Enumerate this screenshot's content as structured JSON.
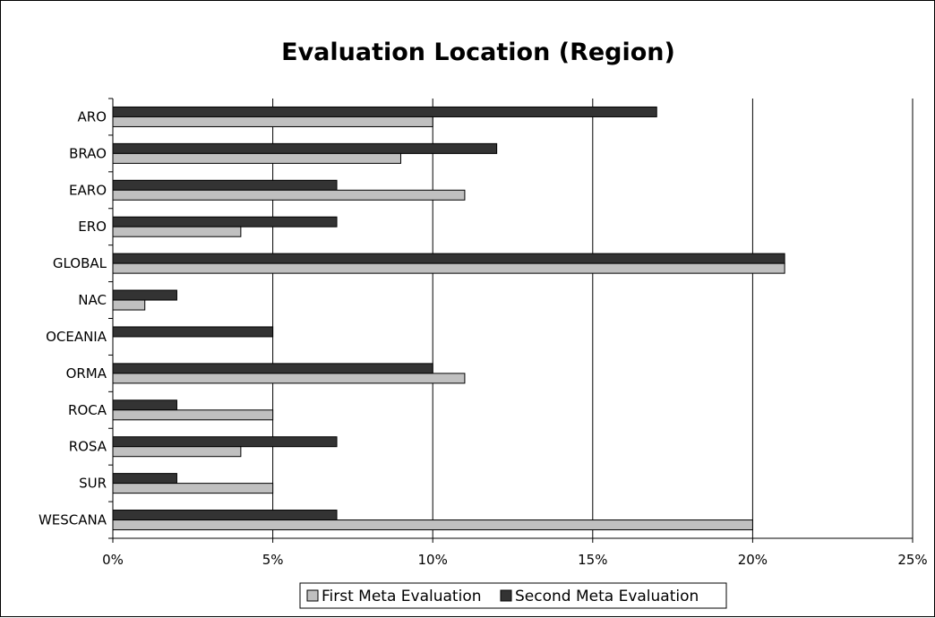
{
  "chart_data": {
    "type": "bar",
    "orientation": "horizontal",
    "title": "Evaluation Location (Region)",
    "xlabel": "",
    "ylabel": "",
    "categories": [
      "ARO",
      "BRAO",
      "EARO",
      "ERO",
      "GLOBAL",
      "NAC",
      "OCEANIA",
      "ORMA",
      "ROCA",
      "ROSA",
      "SUR",
      "WESCANA"
    ],
    "series": [
      {
        "name": "First Meta Evaluation",
        "color": "#c0c0c0",
        "values": [
          10,
          9,
          11,
          4,
          21,
          1,
          0,
          11,
          5,
          4,
          5,
          20
        ]
      },
      {
        "name": "Second Meta Evaluation",
        "color": "#333333",
        "values": [
          17,
          12,
          7,
          7,
          21,
          2,
          5,
          10,
          2,
          7,
          2,
          7
        ]
      }
    ],
    "xlim": [
      0,
      25
    ],
    "x_ticks": [
      0,
      5,
      10,
      15,
      20,
      25
    ],
    "x_tick_labels": [
      "0%",
      "5%",
      "10%",
      "15%",
      "20%",
      "25%"
    ],
    "grid": "vertical",
    "legend_position": "bottom"
  }
}
